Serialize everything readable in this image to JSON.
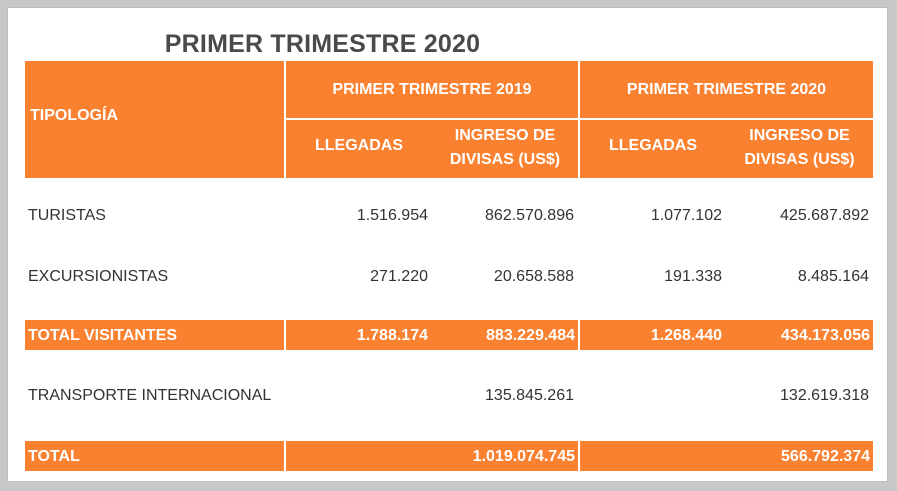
{
  "title": "PRIMER TRIMESTRE 2020",
  "colors": {
    "accent": "#f98130",
    "title": "#4a4a4a",
    "text": "#333333"
  },
  "headers": {
    "tipologia": "TIPOLOGÍA",
    "period_2019": "PRIMER TRIMESTRE 2019",
    "period_2020": "PRIMER TRIMESTRE 2020",
    "llegadas": "LLEGADAS",
    "ingreso_line1": "INGRESO DE",
    "ingreso_line2": "DIVISAS (US$)"
  },
  "rows": [
    {
      "label": "TURISTAS",
      "llegadas_2019": "1.516.954",
      "ingreso_2019": "862.570.896",
      "llegadas_2020": "1.077.102",
      "ingreso_2020": "425.687.892"
    },
    {
      "label": "EXCURSIONISTAS",
      "llegadas_2019": "271.220",
      "ingreso_2019": "20.658.588",
      "llegadas_2020": "191.338",
      "ingreso_2020": "8.485.164"
    }
  ],
  "total_visitantes": {
    "label": "TOTAL VISITANTES",
    "llegadas_2019": "1.788.174",
    "ingreso_2019": "883.229.484",
    "llegadas_2020": "1.268.440",
    "ingreso_2020": "434.173.056"
  },
  "transporte": {
    "label": "TRANSPORTE INTERNACIONAL",
    "ingreso_2019": "135.845.261",
    "ingreso_2020": "132.619.318"
  },
  "total": {
    "label": "TOTAL",
    "ingreso_2019": "1.019.074.745",
    "ingreso_2020": "566.792.374"
  }
}
